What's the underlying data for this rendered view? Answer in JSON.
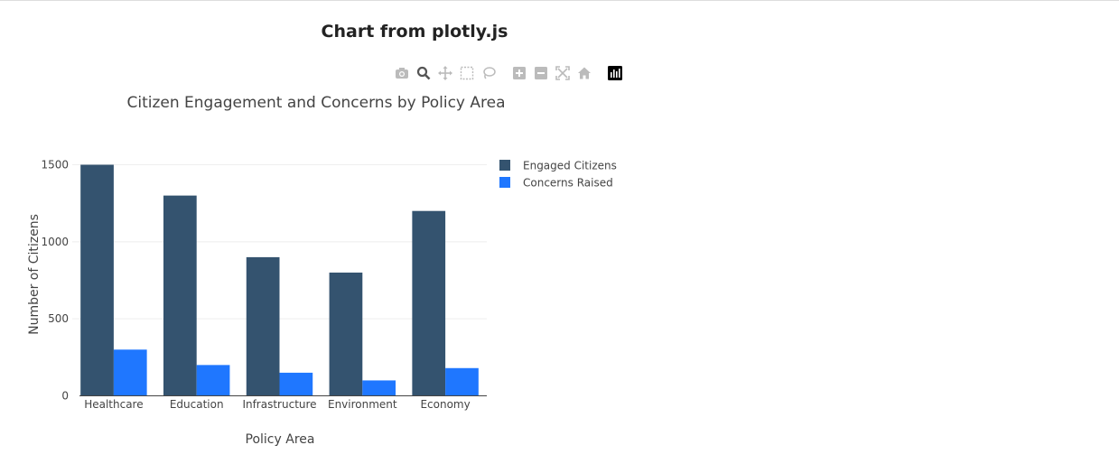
{
  "page": {
    "title": "Chart from plotly.js"
  },
  "modebar": {
    "buttons": [
      {
        "name": "camera-icon"
      },
      {
        "name": "zoom-icon"
      },
      {
        "name": "pan-icon"
      },
      {
        "name": "box-select-icon"
      },
      {
        "name": "lasso-select-icon"
      },
      {
        "name": "zoom-in-icon"
      },
      {
        "name": "zoom-out-icon"
      },
      {
        "name": "autoscale-icon"
      },
      {
        "name": "home-icon"
      },
      {
        "name": "plotly-logo-icon"
      }
    ]
  },
  "chart_data": {
    "type": "bar",
    "title": "Citizen Engagement and Concerns by Policy Area",
    "xlabel": "Policy Area",
    "ylabel": "Number of Citizens",
    "categories": [
      "Healthcare",
      "Education",
      "Infrastructure",
      "Environment",
      "Economy"
    ],
    "series": [
      {
        "name": "Engaged Citizens",
        "color": "#34536f",
        "values": [
          1500,
          1300,
          900,
          800,
          1200
        ]
      },
      {
        "name": "Concerns Raised",
        "color": "#1f77ff",
        "values": [
          300,
          200,
          150,
          100,
          180
        ]
      }
    ],
    "ylim": [
      0,
      1500
    ],
    "yticks": [
      0,
      500,
      1000,
      1500
    ],
    "grid": true,
    "legend_position": "top-right"
  }
}
